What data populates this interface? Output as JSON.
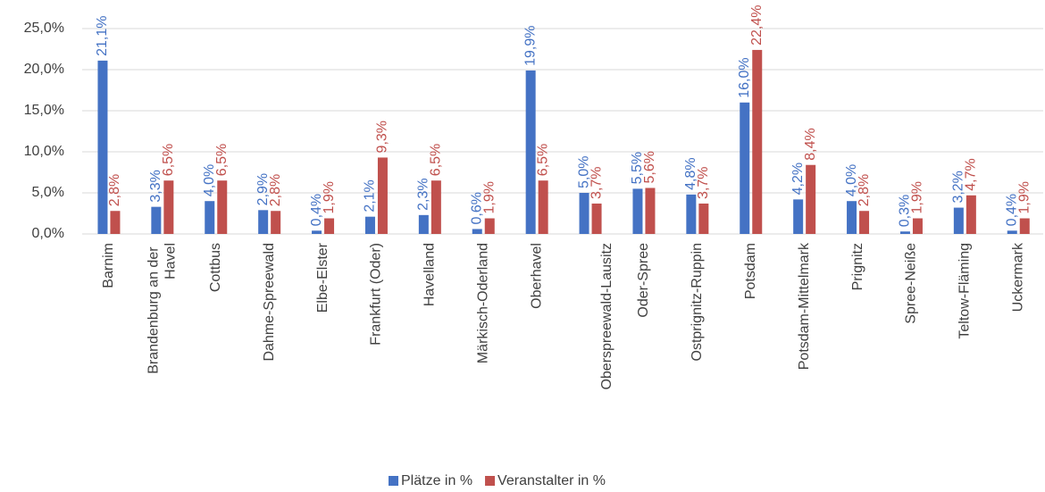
{
  "chart_data": {
    "type": "bar",
    "categories": [
      "Barnim",
      "Brandenburg an der Havel",
      "Cottbus",
      "Dahme-Spreewald",
      "Elbe-Elster",
      "Frankfurt (Oder)",
      "Havelland",
      "Märkisch-Oderland",
      "Oberhavel",
      "Oberspreewald-Lausitz",
      "Oder-Spree",
      "Ostprignitz-Ruppin",
      "Potsdam",
      "Potsdam-Mittelmark",
      "Prignitz",
      "Spree-Neiße",
      "Teltow-Fläming",
      "Uckermark"
    ],
    "series": [
      {
        "name": "Plätze in %",
        "color": "#4472c4",
        "values": [
          21.1,
          3.3,
          4.0,
          2.9,
          0.4,
          2.1,
          2.3,
          0.6,
          19.9,
          5.0,
          5.5,
          4.8,
          16.0,
          4.2,
          4.0,
          0.3,
          3.2,
          0.4
        ],
        "value_labels": [
          "21,1%",
          "3,3%",
          "4,0%",
          "2,9%",
          "0,4%",
          "2,1%",
          "2,3%",
          "0,6%",
          "19,9%",
          "5,0%",
          "5,5%",
          "4,8%",
          "16,0%",
          "4,2%",
          "4,0%",
          "0,3%",
          "3,2%",
          "0,4%"
        ]
      },
      {
        "name": "Veranstalter in %",
        "color": "#c0504d",
        "values": [
          2.8,
          6.5,
          6.5,
          2.8,
          1.9,
          9.3,
          6.5,
          1.9,
          6.5,
          3.7,
          5.6,
          3.7,
          22.4,
          8.4,
          2.8,
          1.9,
          4.7,
          1.9
        ],
        "value_labels": [
          "2,8%",
          "6,5%",
          "6,5%",
          "2,8%",
          "1,9%",
          "9,3%",
          "6,5%",
          "1,9%",
          "6,5%",
          "3,7%",
          "5,6%",
          "3,7%",
          "22,4%",
          "8,4%",
          "2,8%",
          "1,9%",
          "4,7%",
          "1,9%"
        ]
      }
    ],
    "ylim": [
      0,
      25
    ],
    "yticks": [
      {
        "value": 0,
        "label": "0,0%"
      },
      {
        "value": 5,
        "label": "5,0%"
      },
      {
        "value": 10,
        "label": "10,0%"
      },
      {
        "value": 15,
        "label": "15,0%"
      },
      {
        "value": 20,
        "label": "20,0%"
      },
      {
        "value": 25,
        "label": "25,0%"
      }
    ],
    "grid": true,
    "legend": "bottom"
  }
}
